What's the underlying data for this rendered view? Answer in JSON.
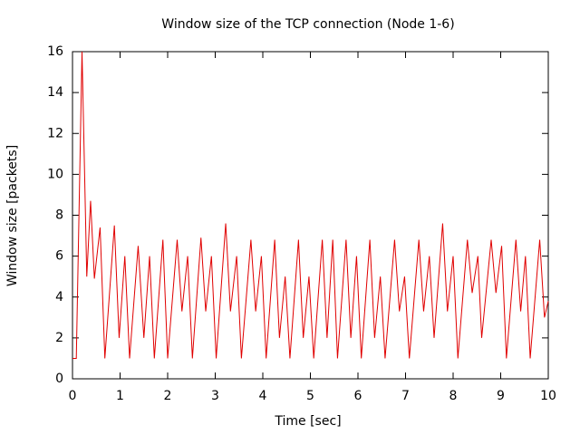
{
  "chart_data": {
    "type": "line",
    "title": "Window size of the TCP connection (Node 1-6)",
    "x_label": "Time [sec]",
    "y_label": "Window size [packets]",
    "color": "#e00000",
    "x": [
      0,
      0.08,
      0.2,
      0.3,
      0.38,
      0.46,
      0.58,
      0.68,
      0.88,
      0.98,
      1.1,
      1.2,
      1.38,
      1.5,
      1.62,
      1.72,
      1.9,
      2.0,
      2.2,
      2.3,
      2.42,
      2.52,
      2.7,
      2.8,
      2.92,
      3.02,
      3.22,
      3.32,
      3.45,
      3.55,
      3.75,
      3.85,
      3.97,
      4.07,
      4.25,
      4.35,
      4.47,
      4.57,
      4.75,
      4.85,
      4.97,
      5.07,
      5.25,
      5.35,
      5.47,
      5.57,
      5.75,
      5.85,
      5.97,
      6.07,
      6.25,
      6.35,
      6.47,
      6.57,
      6.77,
      6.87,
      6.98,
      7.08,
      7.28,
      7.38,
      7.5,
      7.6,
      7.78,
      7.88,
      8.0,
      8.1,
      8.3,
      8.4,
      8.52,
      8.6,
      8.8,
      8.9,
      9.02,
      9.12,
      9.32,
      9.42,
      9.52,
      9.62,
      9.82,
      9.92,
      10
    ],
    "values": [
      1,
      1,
      16,
      5,
      8.7,
      4.9,
      7.4,
      1,
      7.5,
      2,
      6,
      1,
      6.5,
      2,
      6,
      1,
      6.8,
      1,
      6.8,
      3.3,
      6,
      1,
      6.9,
      3.3,
      6,
      1,
      7.6,
      3.3,
      6,
      1,
      6.8,
      3.3,
      6,
      1,
      6.8,
      2,
      5,
      1,
      6.8,
      2,
      5,
      1,
      6.8,
      2,
      6.8,
      1,
      6.8,
      2,
      6,
      1,
      6.8,
      2,
      5,
      1,
      6.8,
      3.3,
      5,
      1,
      6.8,
      3.3,
      6,
      2,
      7.6,
      3.3,
      6,
      1,
      6.8,
      4.2,
      6,
      2,
      6.8,
      4.2,
      6.5,
      1,
      6.8,
      3.3,
      6,
      1,
      6.8,
      3,
      3.8
    ],
    "xlim": [
      0,
      10
    ],
    "xticks": [
      0,
      1,
      2,
      3,
      4,
      5,
      6,
      7,
      8,
      9,
      10
    ],
    "ylim": [
      0,
      16
    ],
    "yticks": [
      0,
      2,
      4,
      6,
      8,
      10,
      12,
      14,
      16
    ],
    "grid": false
  }
}
